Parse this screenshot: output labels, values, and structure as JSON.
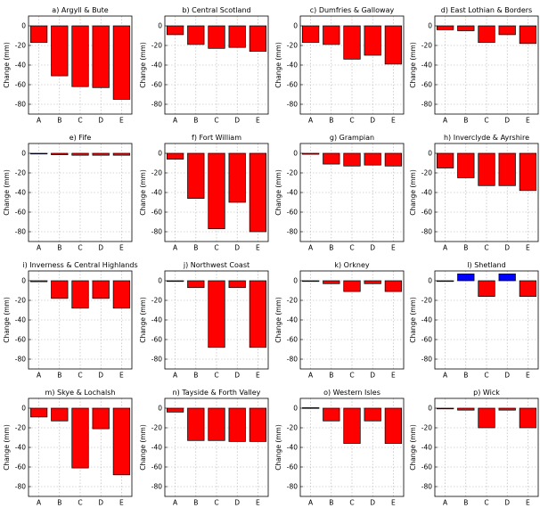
{
  "chart_data": [
    {
      "type": "bar",
      "title": "a) Argyll & Bute",
      "ylabel": "Change (mm)",
      "categories": [
        "A",
        "B",
        "C",
        "D",
        "E"
      ],
      "values": [
        -17,
        -51,
        -62,
        -63,
        -75
      ],
      "colors": [
        "#ff0000",
        "#ff0000",
        "#ff0000",
        "#ff0000",
        "#ff0000"
      ],
      "ylim": [
        -90,
        10
      ],
      "yticks": [
        0,
        -20,
        -40,
        -60,
        -80
      ]
    },
    {
      "type": "bar",
      "title": "b) Central Scotland",
      "ylabel": "Change (mm)",
      "categories": [
        "A",
        "B",
        "C",
        "D",
        "E"
      ],
      "values": [
        -9,
        -19,
        -23,
        -22,
        -26
      ],
      "colors": [
        "#ff0000",
        "#ff0000",
        "#ff0000",
        "#ff0000",
        "#ff0000"
      ],
      "ylim": [
        -90,
        10
      ],
      "yticks": [
        0,
        -20,
        -40,
        -60,
        -80
      ]
    },
    {
      "type": "bar",
      "title": "c) Dumfries & Galloway",
      "ylabel": "Change (mm)",
      "categories": [
        "A",
        "B",
        "C",
        "D",
        "E"
      ],
      "values": [
        -17,
        -19,
        -34,
        -30,
        -39
      ],
      "colors": [
        "#ff0000",
        "#ff0000",
        "#ff0000",
        "#ff0000",
        "#ff0000"
      ],
      "ylim": [
        -90,
        10
      ],
      "yticks": [
        0,
        -20,
        -40,
        -60,
        -80
      ]
    },
    {
      "type": "bar",
      "title": "d) East Lothian & Borders",
      "ylabel": "Change (mm)",
      "categories": [
        "A",
        "B",
        "C",
        "D",
        "E"
      ],
      "values": [
        -4,
        -5,
        -17,
        -9,
        -18
      ],
      "colors": [
        "#ff0000",
        "#ff0000",
        "#ff0000",
        "#ff0000",
        "#ff0000"
      ],
      "ylim": [
        -90,
        10
      ],
      "yticks": [
        0,
        -20,
        -40,
        -60,
        -80
      ]
    },
    {
      "type": "bar",
      "title": "e) Fife",
      "ylabel": "Change (mm)",
      "categories": [
        "A",
        "B",
        "C",
        "D",
        "E"
      ],
      "values": [
        -0.5,
        -1.5,
        -2,
        -2,
        -2
      ],
      "colors": [
        "#0000ff",
        "#ff0000",
        "#ff0000",
        "#ff0000",
        "#ff0000"
      ],
      "ylim": [
        -90,
        10
      ],
      "yticks": [
        0,
        -20,
        -40,
        -60,
        -80
      ]
    },
    {
      "type": "bar",
      "title": "f) Fort William",
      "ylabel": "Change (mm)",
      "categories": [
        "A",
        "B",
        "C",
        "D",
        "E"
      ],
      "values": [
        -6,
        -46,
        -77,
        -50,
        -80
      ],
      "colors": [
        "#ff0000",
        "#ff0000",
        "#ff0000",
        "#ff0000",
        "#ff0000"
      ],
      "ylim": [
        -90,
        10
      ],
      "yticks": [
        0,
        -20,
        -40,
        -60,
        -80
      ]
    },
    {
      "type": "bar",
      "title": "g) Grampian",
      "ylabel": "Change (mm)",
      "categories": [
        "A",
        "B",
        "C",
        "D",
        "E"
      ],
      "values": [
        -1,
        -11,
        -13,
        -12,
        -13
      ],
      "colors": [
        "#ff0000",
        "#ff0000",
        "#ff0000",
        "#ff0000",
        "#ff0000"
      ],
      "ylim": [
        -90,
        10
      ],
      "yticks": [
        0,
        -20,
        -40,
        -60,
        -80
      ]
    },
    {
      "type": "bar",
      "title": "h) Inverclyde & Ayrshire",
      "ylabel": "Change (mm)",
      "categories": [
        "A",
        "B",
        "C",
        "D",
        "E"
      ],
      "values": [
        -15,
        -25,
        -33,
        -33,
        -38
      ],
      "colors": [
        "#ff0000",
        "#ff0000",
        "#ff0000",
        "#ff0000",
        "#ff0000"
      ],
      "ylim": [
        -90,
        10
      ],
      "yticks": [
        0,
        -20,
        -40,
        -60,
        -80
      ]
    },
    {
      "type": "bar",
      "title": "i) Inverness & Central Highlands",
      "ylabel": "Change (mm)",
      "categories": [
        "A",
        "B",
        "C",
        "D",
        "E"
      ],
      "values": [
        -1,
        -18,
        -28,
        -18,
        -28
      ],
      "colors": [
        "#ff0000",
        "#ff0000",
        "#ff0000",
        "#ff0000",
        "#ff0000"
      ],
      "ylim": [
        -90,
        10
      ],
      "yticks": [
        0,
        -20,
        -40,
        -60,
        -80
      ]
    },
    {
      "type": "bar",
      "title": "j) Northwest Coast",
      "ylabel": "Change (mm)",
      "categories": [
        "A",
        "B",
        "C",
        "D",
        "E"
      ],
      "values": [
        0,
        -7,
        -68,
        -7,
        -68
      ],
      "colors": [
        "#ff0000",
        "#ff0000",
        "#ff0000",
        "#ff0000",
        "#ff0000"
      ],
      "ylim": [
        -90,
        10
      ],
      "yticks": [
        0,
        -20,
        -40,
        -60,
        -80
      ]
    },
    {
      "type": "bar",
      "title": "k) Orkney",
      "ylabel": "Change (mm)",
      "categories": [
        "A",
        "B",
        "C",
        "D",
        "E"
      ],
      "values": [
        0,
        -3,
        -11,
        -3,
        -11
      ],
      "colors": [
        "#ff0000",
        "#ff0000",
        "#ff0000",
        "#ff0000",
        "#ff0000"
      ],
      "ylim": [
        -90,
        10
      ],
      "yticks": [
        0,
        -20,
        -40,
        -60,
        -80
      ]
    },
    {
      "type": "bar",
      "title": "l) Shetland",
      "ylabel": "Change (mm)",
      "categories": [
        "A",
        "B",
        "C",
        "D",
        "E"
      ],
      "values": [
        0,
        7,
        -16,
        7,
        -16
      ],
      "colors": [
        "#ff0000",
        "#0000ff",
        "#ff0000",
        "#0000ff",
        "#ff0000"
      ],
      "ylim": [
        -90,
        10
      ],
      "yticks": [
        0,
        -20,
        -40,
        -60,
        -80
      ]
    },
    {
      "type": "bar",
      "title": "m) Skye & Lochalsh",
      "ylabel": "Change (mm)",
      "categories": [
        "A",
        "B",
        "C",
        "D",
        "E"
      ],
      "values": [
        -9,
        -13,
        -61,
        -21,
        -68
      ],
      "colors": [
        "#ff0000",
        "#ff0000",
        "#ff0000",
        "#ff0000",
        "#ff0000"
      ],
      "ylim": [
        -90,
        10
      ],
      "yticks": [
        0,
        -20,
        -40,
        -60,
        -80
      ]
    },
    {
      "type": "bar",
      "title": "n) Tayside & Forth Valley",
      "ylabel": "Change (mm)",
      "categories": [
        "A",
        "B",
        "C",
        "D",
        "E"
      ],
      "values": [
        -4,
        -33,
        -33,
        -34,
        -34
      ],
      "colors": [
        "#ff0000",
        "#ff0000",
        "#ff0000",
        "#ff0000",
        "#ff0000"
      ],
      "ylim": [
        -90,
        10
      ],
      "yticks": [
        0,
        -20,
        -40,
        -60,
        -80
      ]
    },
    {
      "type": "bar",
      "title": "o) Western Isles",
      "ylabel": "Change (mm)",
      "categories": [
        "A",
        "B",
        "C",
        "D",
        "E"
      ],
      "values": [
        0.5,
        -13,
        -36,
        -13,
        -36
      ],
      "colors": [
        "#0000ff",
        "#ff0000",
        "#ff0000",
        "#ff0000",
        "#ff0000"
      ],
      "ylim": [
        -90,
        10
      ],
      "yticks": [
        0,
        -20,
        -40,
        -60,
        -80
      ]
    },
    {
      "type": "bar",
      "title": "p) Wick",
      "ylabel": "Change (mm)",
      "categories": [
        "A",
        "B",
        "C",
        "D",
        "E"
      ],
      "values": [
        0,
        -2,
        -20,
        -2,
        -20
      ],
      "colors": [
        "#ff0000",
        "#ff0000",
        "#ff0000",
        "#ff0000",
        "#ff0000"
      ],
      "ylim": [
        -90,
        10
      ],
      "yticks": [
        0,
        -20,
        -40,
        -60,
        -80
      ]
    }
  ]
}
